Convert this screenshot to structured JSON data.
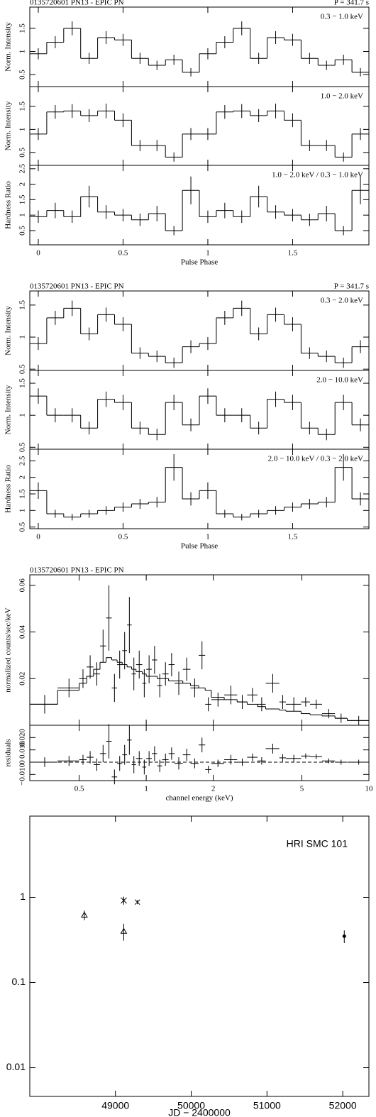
{
  "chart_data": [
    {
      "type": "step",
      "header_left": "0135720601 PN13 - EPIC PN",
      "header_right": "P = 341.7 s",
      "xlabel": "Pulse Phase",
      "xlim": [
        -0.05,
        1.95
      ],
      "xticks": [
        0,
        0.5,
        1,
        1.5
      ],
      "x": [
        0,
        0.1,
        0.2,
        0.3,
        0.4,
        0.5,
        0.6,
        0.7,
        0.8,
        0.9,
        1.0,
        1.1,
        1.2,
        1.3,
        1.4,
        1.5,
        1.6,
        1.7,
        1.8,
        1.9
      ],
      "panels": [
        {
          "ylabel": "Norm. Intensity",
          "label": "0.3 − 1.0 keV",
          "ylim": [
            0.24,
            1.96
          ],
          "yticks": [
            0.5,
            1,
            1.5
          ],
          "values": [
            0.95,
            1.2,
            1.5,
            0.85,
            1.3,
            1.25,
            0.85,
            0.7,
            0.82,
            0.55,
            0.95,
            1.2,
            1.5,
            0.85,
            1.3,
            1.25,
            0.85,
            0.7,
            0.82,
            0.55
          ],
          "errors": [
            0.12,
            0.13,
            0.15,
            0.12,
            0.14,
            0.13,
            0.12,
            0.1,
            0.11,
            0.09,
            0.12,
            0.13,
            0.15,
            0.12,
            0.14,
            0.13,
            0.12,
            0.1,
            0.11,
            0.09
          ]
        },
        {
          "ylabel": "Norm. Intensity",
          "label": "1.0 − 2.0 keV",
          "ylim": [
            0.22,
            1.93
          ],
          "yticks": [
            0.5,
            1,
            1.5
          ],
          "values": [
            0.9,
            1.38,
            1.4,
            1.3,
            1.4,
            1.2,
            0.65,
            0.65,
            0.4,
            0.9,
            0.9,
            1.38,
            1.4,
            1.3,
            1.4,
            1.2,
            0.65,
            0.65,
            0.4,
            0.9
          ],
          "errors": [
            0.13,
            0.15,
            0.15,
            0.14,
            0.16,
            0.15,
            0.12,
            0.12,
            0.1,
            0.13,
            0.13,
            0.15,
            0.15,
            0.14,
            0.16,
            0.15,
            0.12,
            0.12,
            0.1,
            0.13
          ]
        },
        {
          "ylabel": "Hardness Ratio",
          "label": "1.0 − 2.0 keV / 0.3 − 1.0 keV",
          "ylim": [
            0.04,
            2.61
          ],
          "yticks": [
            0.5,
            1,
            1.5,
            2,
            2.5
          ],
          "values": [
            0.95,
            1.15,
            0.95,
            1.6,
            1.1,
            1.0,
            0.85,
            1.05,
            0.5,
            1.8,
            0.95,
            1.15,
            0.95,
            1.6,
            1.1,
            1.0,
            0.85,
            1.05,
            0.5,
            1.8
          ],
          "errors": [
            0.2,
            0.25,
            0.2,
            0.35,
            0.22,
            0.2,
            0.2,
            0.25,
            0.15,
            0.45,
            0.2,
            0.25,
            0.2,
            0.35,
            0.22,
            0.2,
            0.2,
            0.25,
            0.15,
            0.45
          ]
        }
      ]
    },
    {
      "type": "step",
      "header_left": "0135720601 PN13 - EPIC PN",
      "header_right": "P = 341.7 s",
      "xlabel": "Pulse Phase",
      "xlim": [
        -0.05,
        1.95
      ],
      "xticks": [
        0,
        0.5,
        1,
        1.5
      ],
      "x": [
        0,
        0.1,
        0.2,
        0.3,
        0.4,
        0.5,
        0.6,
        0.7,
        0.8,
        0.9,
        1.0,
        1.1,
        1.2,
        1.3,
        1.4,
        1.5,
        1.6,
        1.7,
        1.8,
        1.9
      ],
      "panels": [
        {
          "ylabel": "Norm. Intensity",
          "label": "0.3 − 2.0 keV",
          "ylim": [
            0.48,
            1.72
          ],
          "yticks": [
            0.5,
            1,
            1.5
          ],
          "values": [
            0.9,
            1.3,
            1.45,
            1.05,
            1.35,
            1.2,
            0.75,
            0.7,
            0.6,
            0.85,
            0.9,
            1.3,
            1.45,
            1.05,
            1.35,
            1.2,
            0.75,
            0.7,
            0.6,
            0.85
          ],
          "errors": [
            0.1,
            0.11,
            0.12,
            0.1,
            0.11,
            0.11,
            0.09,
            0.09,
            0.08,
            0.1,
            0.1,
            0.11,
            0.12,
            0.1,
            0.11,
            0.11,
            0.09,
            0.09,
            0.08,
            0.1
          ]
        },
        {
          "ylabel": "Norm. Intensity",
          "label": "2.0 − 10.0 keV",
          "ylim": [
            0.47,
            1.7
          ],
          "yticks": [
            0.5,
            1,
            1.5
          ],
          "values": [
            1.3,
            1.0,
            1.0,
            0.8,
            1.25,
            1.2,
            0.8,
            0.7,
            1.2,
            0.85,
            1.3,
            1.0,
            1.0,
            0.8,
            1.25,
            1.2,
            0.8,
            0.7,
            1.2,
            0.85
          ],
          "errors": [
            0.12,
            0.11,
            0.11,
            0.1,
            0.12,
            0.12,
            0.1,
            0.09,
            0.12,
            0.1,
            0.12,
            0.11,
            0.11,
            0.1,
            0.12,
            0.12,
            0.1,
            0.09,
            0.12,
            0.1
          ]
        },
        {
          "ylabel": "Hardness Ratio",
          "label": "2.0 − 10.0 keV / 0.3 − 2.0 keV",
          "ylim": [
            0.45,
            2.85
          ],
          "yticks": [
            0.5,
            1,
            1.5,
            2,
            2.5
          ],
          "values": [
            1.6,
            0.9,
            0.8,
            0.9,
            1.0,
            1.1,
            1.2,
            1.25,
            2.3,
            1.35,
            1.6,
            0.9,
            0.8,
            0.9,
            1.0,
            1.1,
            1.2,
            1.25,
            2.3,
            1.35
          ],
          "errors": [
            0.25,
            0.12,
            0.1,
            0.12,
            0.13,
            0.14,
            0.15,
            0.16,
            0.4,
            0.2,
            0.25,
            0.12,
            0.1,
            0.12,
            0.13,
            0.14,
            0.15,
            0.16,
            0.4,
            0.2
          ]
        }
      ]
    },
    {
      "type": "spectrum",
      "header_left": "0135720601 PN13 - EPIC PN",
      "xlabel": "channel energy (keV)",
      "xlog": true,
      "xlim": [
        0.3,
        10
      ],
      "xticks": [
        0.5,
        1,
        2,
        5,
        10
      ],
      "ylabel": "normalized counts/sec/keV",
      "ylim": [
        0,
        0.0645
      ],
      "yticks": [
        0.02,
        0.04,
        0.06
      ],
      "x": [
        0.35,
        0.45,
        0.52,
        0.56,
        0.6,
        0.64,
        0.68,
        0.72,
        0.76,
        0.8,
        0.84,
        0.88,
        0.93,
        0.98,
        1.03,
        1.09,
        1.15,
        1.22,
        1.3,
        1.4,
        1.52,
        1.65,
        1.78,
        1.9,
        2.1,
        2.4,
        2.7,
        3.0,
        3.3,
        3.7,
        4.1,
        4.6,
        5.2,
        5.8,
        6.6,
        7.5,
        9.0
      ],
      "xerr": [
        0.05,
        0.05,
        0.02,
        0.02,
        0.02,
        0.02,
        0.02,
        0.02,
        0.02,
        0.02,
        0.02,
        0.02,
        0.03,
        0.02,
        0.03,
        0.03,
        0.03,
        0.04,
        0.04,
        0.06,
        0.06,
        0.07,
        0.06,
        0.06,
        0.14,
        0.16,
        0.14,
        0.16,
        0.14,
        0.26,
        0.14,
        0.36,
        0.24,
        0.36,
        0.44,
        0.46,
        1.0
      ],
      "values": [
        0.009,
        0.016,
        0.02,
        0.025,
        0.022,
        0.034,
        0.046,
        0.016,
        0.026,
        0.032,
        0.043,
        0.022,
        0.026,
        0.018,
        0.024,
        0.028,
        0.017,
        0.022,
        0.026,
        0.018,
        0.024,
        0.016,
        0.03,
        0.009,
        0.011,
        0.013,
        0.01,
        0.013,
        0.009,
        0.018,
        0.01,
        0.009,
        0.01,
        0.009,
        0.005,
        0.003,
        0.002
      ],
      "errors": [
        0.004,
        0.004,
        0.004,
        0.005,
        0.005,
        0.007,
        0.014,
        0.006,
        0.006,
        0.008,
        0.012,
        0.007,
        0.006,
        0.006,
        0.006,
        0.006,
        0.005,
        0.005,
        0.005,
        0.005,
        0.005,
        0.004,
        0.006,
        0.003,
        0.003,
        0.004,
        0.003,
        0.003,
        0.003,
        0.004,
        0.003,
        0.003,
        0.002,
        0.002,
        0.002,
        0.002,
        0.002
      ],
      "model": [
        0.009,
        0.015,
        0.018,
        0.021,
        0.024,
        0.027,
        0.029,
        0.028,
        0.027,
        0.026,
        0.025,
        0.024,
        0.023,
        0.022,
        0.021,
        0.021,
        0.02,
        0.02,
        0.019,
        0.019,
        0.018,
        0.017,
        0.016,
        0.015,
        0.012,
        0.011,
        0.01,
        0.009,
        0.008,
        0.007,
        0.0065,
        0.006,
        0.005,
        0.0045,
        0.004,
        0.003,
        0.002
      ],
      "residuals": {
        "ylabel": "residuals",
        "ylim": [
          -0.015,
          0.03
        ],
        "yticks": [
          {
            "value": -0.01,
            "label": "−0.010"
          },
          0,
          {
            "value": 0.01,
            "label": "0.010"
          },
          {
            "value": 0.02,
            "label": "0.020"
          }
        ],
        "values": [
          0.0,
          0.001,
          0.002,
          0.004,
          -0.002,
          0.007,
          0.017,
          -0.012,
          -0.001,
          0.006,
          0.018,
          -0.002,
          0.003,
          -0.004,
          0.003,
          0.007,
          -0.003,
          0.002,
          0.007,
          -0.001,
          0.006,
          -0.001,
          0.014,
          -0.006,
          -0.001,
          0.002,
          0.0,
          0.004,
          0.001,
          0.011,
          0.0035,
          0.003,
          0.005,
          0.0045,
          0.001,
          0.0,
          0.0
        ]
      }
    },
    {
      "type": "scatter",
      "label": "HRI SMC 101",
      "xlabel": "JD − 2400000",
      "xlim": [
        47870,
        52345
      ],
      "xticks": [
        49000,
        50000,
        51000,
        52000
      ],
      "ylog": true,
      "ylim": [
        0.0046,
        9
      ],
      "yticks": [
        0.01,
        0.1,
        1
      ],
      "x": [
        48590,
        49110,
        49110,
        49290,
        52020
      ],
      "values": [
        0.62,
        0.4,
        0.92,
        0.88,
        0.35
      ],
      "errors": [
        0.08,
        0.09,
        0.1,
        0.05,
        0.06
      ],
      "markers": [
        "triangle",
        "triangle",
        "asterisk",
        "cross",
        "dot"
      ]
    }
  ]
}
